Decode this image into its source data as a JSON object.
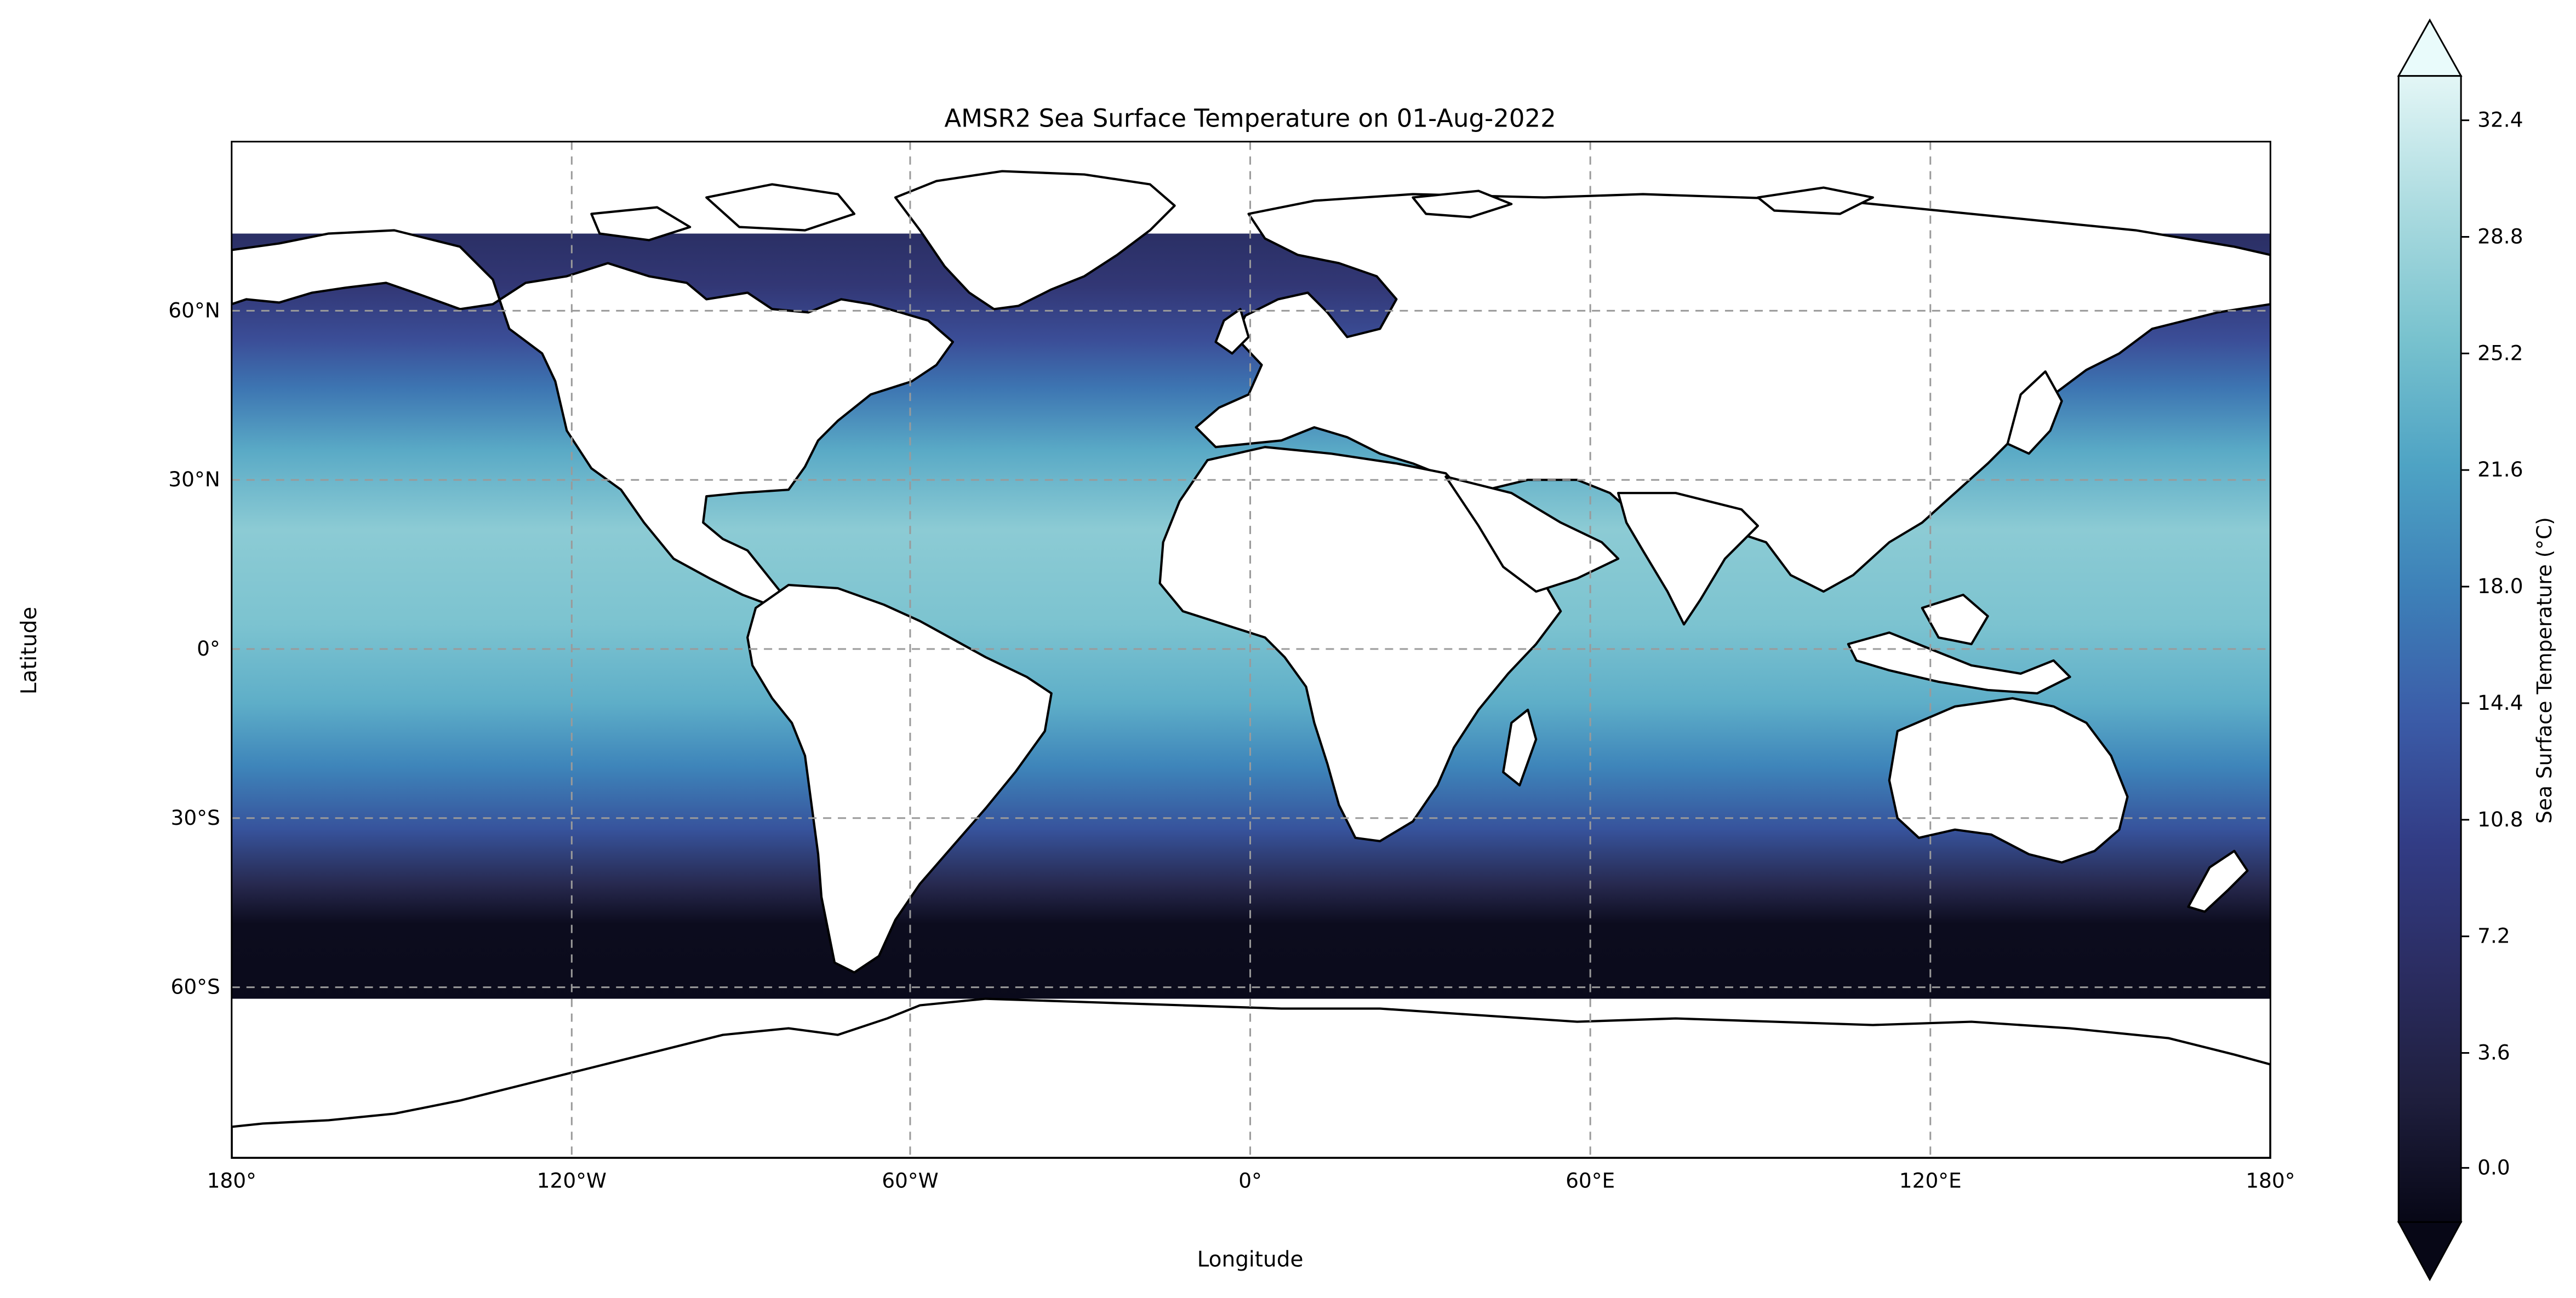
{
  "title": "AMSR2 Sea Surface Temperature on 01-Aug-2022",
  "map": {
    "x_axis_label": "Longitude",
    "y_axis_label": "Latitude",
    "lon_ticks": [
      {
        "value": -180,
        "label": "180°"
      },
      {
        "value": -120,
        "label": "120°W"
      },
      {
        "value": -60,
        "label": "60°W"
      },
      {
        "value": 0,
        "label": "0°"
      },
      {
        "value": 60,
        "label": "60°E"
      },
      {
        "value": 120,
        "label": "120°E"
      },
      {
        "value": 180,
        "label": "180°"
      }
    ],
    "lat_ticks": [
      {
        "value": 60,
        "label": "60°N"
      },
      {
        "value": 30,
        "label": "30°N"
      },
      {
        "value": 0,
        "label": "0°"
      },
      {
        "value": -30,
        "label": "30°S"
      },
      {
        "value": -60,
        "label": "60°S"
      }
    ],
    "lon_range": [
      -180,
      180
    ],
    "lat_range": [
      -90,
      90
    ],
    "gridlines": true,
    "land_color": "#ffffff",
    "coastline_color": "#000000"
  },
  "colorbar": {
    "label": "Sea Surface Temperature (°C)",
    "ticks": [
      "0.0",
      "3.6",
      "7.2",
      "10.8",
      "14.4",
      "18.0",
      "21.6",
      "25.2",
      "28.8",
      "32.4"
    ],
    "range": [
      -1.8,
      34.2
    ],
    "extend": "both",
    "colormap": [
      "#070716",
      "#1f1f3e",
      "#323775",
      "#3c5ba6",
      "#3d7fb8",
      "#4ea3c4",
      "#75c0ce",
      "#a6d9dd",
      "#d8f0f0",
      "#eefcfc"
    ]
  }
}
